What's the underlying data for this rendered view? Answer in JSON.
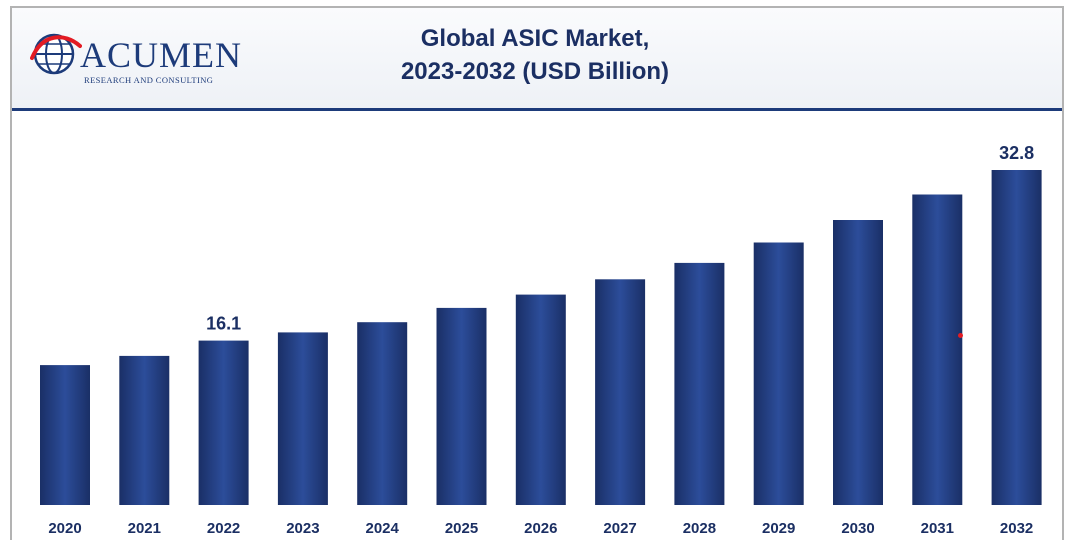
{
  "header": {
    "logo_word": "ACUMEN",
    "logo_sub": "RESEARCH AND CONSULTING",
    "title_line1": "Global ASIC Market,",
    "title_line2": "2023-2032 (USD Billion)"
  },
  "colors": {
    "bar_dark": "#1a2f66",
    "bar_light": "#2c4d9a",
    "text": "#1b2f63",
    "accent_red": "#e31b23"
  },
  "chart_data": {
    "type": "bar",
    "title": "Global ASIC Market, 2023-2032 (USD Billion)",
    "categories": [
      "2020",
      "2021",
      "2022",
      "2023",
      "2024",
      "2025",
      "2026",
      "2027",
      "2028",
      "2029",
      "2030",
      "2031",
      "2032"
    ],
    "values": [
      13.7,
      14.6,
      16.1,
      16.9,
      17.9,
      19.3,
      20.6,
      22.1,
      23.7,
      25.7,
      27.9,
      30.4,
      32.8
    ],
    "data_labels": [
      {
        "index": 2,
        "text": "16.1"
      },
      {
        "index": 12,
        "text": "32.8"
      }
    ],
    "ylim": [
      0,
      32.8
    ],
    "grid": false,
    "legend": "none"
  }
}
